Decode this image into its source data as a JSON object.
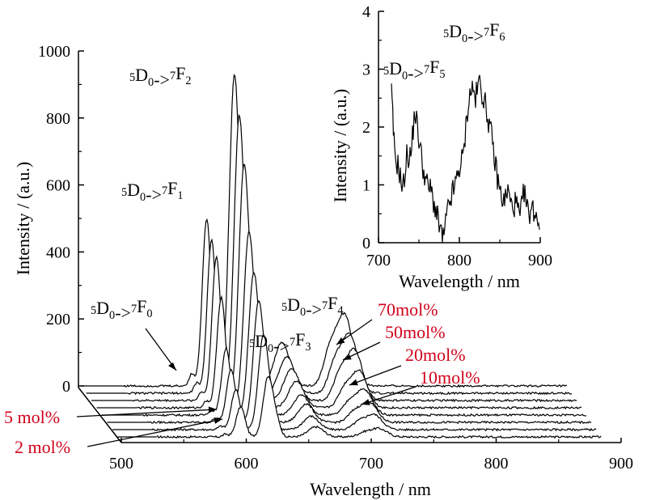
{
  "colors": {
    "axis": "#000000",
    "trace": "#000000",
    "annotation": "#d0021b"
  },
  "chart_data": [
    {
      "type": "line",
      "subtype": "waterfall-3d",
      "title": "",
      "xlabel": "Wavelength / nm",
      "ylabel": "Intensity / (a.u.)",
      "x_ticks": [
        "500",
        "600",
        "700",
        "800",
        "900"
      ],
      "y_ticks": [
        "0",
        "200",
        "400",
        "600",
        "800",
        "1000"
      ],
      "xlim": [
        500,
        900
      ],
      "ylim": [
        0,
        1000
      ],
      "grid": false,
      "peaks": [
        {
          "x": 580,
          "label_sup": "5",
          "label_a": "D",
          "label_sub": "0",
          "label_arrow": "->",
          "label_sup2": "7",
          "label_b": "F",
          "label_sub2": "0"
        },
        {
          "x": 592,
          "label_sup": "5",
          "label_a": "D",
          "label_sub": "0",
          "label_arrow": "->",
          "label_sup2": "7",
          "label_b": "F",
          "label_sub2": "1"
        },
        {
          "x": 614,
          "label_sup": "5",
          "label_a": "D",
          "label_sub": "0",
          "label_arrow": "->",
          "label_sup2": "7",
          "label_b": "F",
          "label_sub2": "2"
        },
        {
          "x": 652,
          "label_sup": "5",
          "label_a": "D",
          "label_sub": "0",
          "label_arrow": "->",
          "label_sup2": "7",
          "label_b": "F",
          "label_sub2": "3"
        },
        {
          "x": 702,
          "label_sup": "5",
          "label_a": "D",
          "label_sub": "0",
          "label_arrow": "->",
          "label_sup2": "7",
          "label_b": "F",
          "label_sub2": "4"
        }
      ],
      "series": [
        {
          "name": "2 mol%",
          "label": "2 mol%",
          "values": {
            "F0": 8,
            "F1": 90,
            "F2": 180,
            "F3": 30,
            "F4": 25
          }
        },
        {
          "name": "5 mol%",
          "label": "5 mol%",
          "values": {
            "F0": 10,
            "F1": 120,
            "F2": 280,
            "F3": 40,
            "F4": 45
          }
        },
        {
          "name": "",
          "values": {
            "F0": 12,
            "F1": 160,
            "F2": 360,
            "F3": 55,
            "F4": 60
          }
        },
        {
          "name": "10mol%",
          "label": "10mol%",
          "values": {
            "F0": 15,
            "F1": 200,
            "F2": 420,
            "F3": 60,
            "F4": 75
          }
        },
        {
          "name": "20mol%",
          "label": "20mol%",
          "values": {
            "F0": 20,
            "F1": 330,
            "F2": 520,
            "F3": 80,
            "F4": 110
          }
        },
        {
          "name": "",
          "values": {
            "F0": 25,
            "F1": 430,
            "F2": 700,
            "F3": 95,
            "F4": 150
          }
        },
        {
          "name": "50mol%",
          "label": "50mol%",
          "values": {
            "F0": 30,
            "F1": 460,
            "F2": 820,
            "F3": 110,
            "F4": 175
          }
        },
        {
          "name": "70mol%",
          "label": "70mol%",
          "values": {
            "F0": 35,
            "F1": 500,
            "F2": 920,
            "F3": 130,
            "F4": 210
          }
        }
      ]
    },
    {
      "type": "line",
      "title": "",
      "xlabel": "Wavelength / nm",
      "ylabel": "Intensity / (a.u.)",
      "x_ticks": [
        "700",
        "800",
        "900"
      ],
      "y_ticks": [
        "0",
        "1",
        "2",
        "3",
        "4"
      ],
      "xlim": [
        700,
        900
      ],
      "ylim": [
        0,
        4
      ],
      "grid": false,
      "peaks": [
        {
          "x": 745,
          "label_sup": "5",
          "label_a": "D",
          "label_sub": "0",
          "label_arrow": "->",
          "label_sup2": "7",
          "label_b": "F",
          "label_sub2": "5"
        },
        {
          "x": 820,
          "label_sup": "5",
          "label_a": "D",
          "label_sub": "0",
          "label_arrow": "->",
          "label_sup2": "7",
          "label_b": "F",
          "label_sub2": "6"
        }
      ],
      "series": [
        {
          "name": "",
          "x": [
            716,
            720,
            725,
            730,
            735,
            740,
            745,
            750,
            755,
            760,
            765,
            770,
            775,
            780,
            785,
            790,
            795,
            800,
            805,
            810,
            815,
            820,
            825,
            830,
            835,
            840,
            845,
            850,
            855,
            860,
            865,
            870,
            875,
            880,
            885,
            890,
            895,
            900
          ],
          "values": [
            2.6,
            1.5,
            1.3,
            0.9,
            1.5,
            1.5,
            2.3,
            1.8,
            1.3,
            1.0,
            0.9,
            0.6,
            0.3,
            0.05,
            0.5,
            0.8,
            1.0,
            1.3,
            1.5,
            2.3,
            2.7,
            2.5,
            2.8,
            2.5,
            2.2,
            1.8,
            1.3,
            0.9,
            0.7,
            0.9,
            0.6,
            0.7,
            0.4,
            0.9,
            0.5,
            0.6,
            0.5,
            0.3
          ]
        }
      ]
    }
  ]
}
